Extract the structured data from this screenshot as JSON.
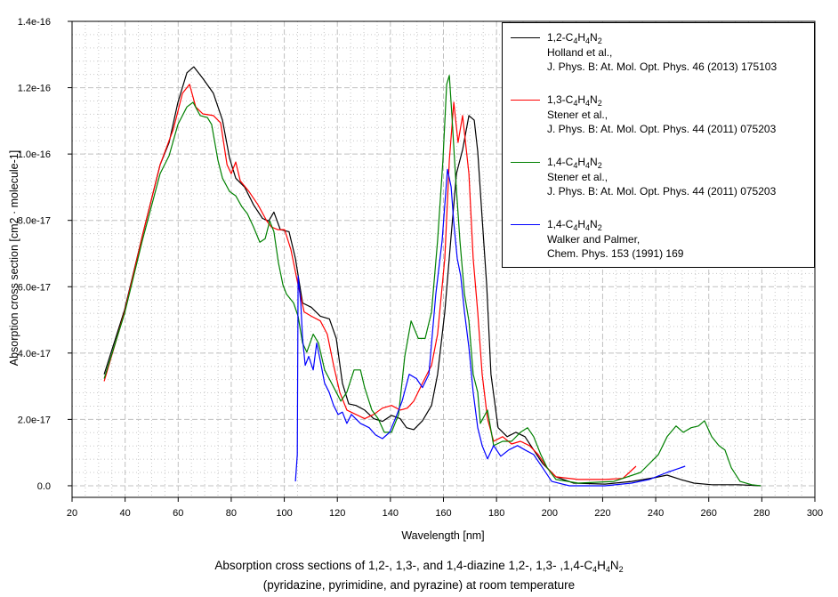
{
  "chart_data": {
    "type": "line",
    "title": "",
    "caption_lines": [
      "Absorption cross sections of 1,2-, 1,3-, and 1,4-diazine 1,2-, 1,3- ,1,4-C4H4N2",
      "(pyridazine, pyrimidine, and pyrazine) at room temperature"
    ],
    "xlabel": "Wavelength [nm]",
    "ylabel": "Absorption cross section [cm2 · molecule-1]",
    "xlim": [
      20,
      300
    ],
    "ylim": [
      -3.5e-18,
      1.4e-16
    ],
    "x_ticks": [
      "20",
      "40",
      "60",
      "80",
      "100",
      "120",
      "140",
      "160",
      "180",
      "200",
      "220",
      "240",
      "260",
      "280",
      "300"
    ],
    "x_tick_values": [
      20,
      40,
      60,
      80,
      100,
      120,
      140,
      160,
      180,
      200,
      220,
      240,
      260,
      280,
      300
    ],
    "y_ticks": [
      "0.0",
      "2.0e-17",
      "4.0e-17",
      "6.0e-17",
      "8.0e-17",
      "1.0e-16",
      "1.2e-16",
      "1.4e-16"
    ],
    "y_tick_values": [
      0,
      2e-17,
      4e-17,
      6e-17,
      8e-17,
      1e-16,
      1.2e-16,
      1.4e-16
    ],
    "grid": true,
    "legend_position": "top-right",
    "series": [
      {
        "name": "1,2-C4H4N2",
        "reference": [
          "Holland et al.,",
          "J. Phys. B: At. Mol. Opt. Phys. 46 (2013) 175103"
        ],
        "color": "#000000",
        "x": [
          32.1,
          39.8,
          46.5,
          53.2,
          56.6,
          59.9,
          63.3,
          65.9,
          69.3,
          73.3,
          76.7,
          79.4,
          81.7,
          85.1,
          88.4,
          91.8,
          94.1,
          96.1,
          98.5,
          101.8,
          104.2,
          106.9,
          110.2,
          113.6,
          117.0,
          119.6,
          121.9,
          124.3,
          127.0,
          130.3,
          133.7,
          137.0,
          140.4,
          143.7,
          146.1,
          148.8,
          152.1,
          155.5,
          157.8,
          160.5,
          162.9,
          164.9,
          167.2,
          169.6,
          171.6,
          172.9,
          174.6,
          176.3,
          177.9,
          180.6,
          184.0,
          187.3,
          190.7,
          194.0,
          197.4,
          202.4,
          209.1,
          220.9,
          230.9,
          239.3,
          244.3,
          249.4,
          254.4,
          261.1,
          271.2,
          279.6
        ],
        "y": [
          3.36e-17,
          5.3e-17,
          7.53e-17,
          9.68e-17,
          1.035e-16,
          1.156e-16,
          1.245e-16,
          1.263e-16,
          1.228e-16,
          1.183e-16,
          1.102e-16,
          9.87e-17,
          9.27e-17,
          9e-17,
          8.47e-17,
          8.06e-17,
          7.98e-17,
          8.25e-17,
          7.72e-17,
          7.66e-17,
          6.85e-17,
          5.51e-17,
          5.38e-17,
          5.11e-17,
          5.03e-17,
          4.44e-17,
          3.09e-17,
          2.47e-17,
          2.42e-17,
          2.28e-17,
          2.02e-17,
          1.94e-17,
          2.12e-17,
          2.02e-17,
          1.75e-17,
          1.69e-17,
          1.96e-17,
          2.42e-17,
          3.36e-17,
          5.24e-17,
          7.53e-17,
          9.41e-17,
          1.013e-16,
          1.116e-16,
          1.102e-16,
          1.008e-16,
          8.06e-17,
          6.05e-17,
          3.36e-17,
          1.75e-17,
          1.48e-17,
          1.61e-17,
          1.48e-17,
          1.08e-17,
          6.7e-18,
          2.7e-18,
          8e-19,
          5e-19,
          1.3e-18,
          2.4e-18,
          3.2e-18,
          1.9e-18,
          8e-19,
          3e-19,
          3e-19,
          0
        ]
      },
      {
        "name": "1,3-C4H4N2",
        "reference": [
          "Stener et al.,",
          "J. Phys. B: At. Mol. Opt. Phys. 44 (2011) 075203"
        ],
        "color": "#ff0000",
        "x": [
          32.1,
          39.8,
          46.5,
          53.2,
          58.2,
          61.6,
          64.3,
          66.6,
          69.3,
          73.3,
          76.0,
          78.4,
          80.0,
          81.7,
          83.4,
          86.7,
          90.1,
          93.4,
          95.1,
          97.5,
          100.1,
          102.5,
          105.2,
          107.5,
          110.2,
          113.6,
          116.2,
          118.6,
          120.9,
          123.6,
          127.0,
          130.3,
          133.7,
          137.0,
          140.4,
          143.7,
          146.4,
          148.8,
          152.1,
          155.5,
          157.8,
          160.5,
          162.2,
          163.9,
          165.5,
          167.2,
          169.6,
          171.2,
          172.9,
          174.6,
          176.6,
          178.9,
          182.3,
          185.7,
          189.0,
          192.4,
          195.7,
          199.1,
          202.4,
          210.8,
          220.9,
          227.6,
          232.6
        ],
        "y": [
          3.15e-17,
          5.24e-17,
          7.53e-17,
          9.68e-17,
          1.075e-16,
          1.183e-16,
          1.21e-16,
          1.142e-16,
          1.121e-16,
          1.116e-16,
          1.094e-16,
          9.68e-17,
          9.41e-17,
          9.76e-17,
          9.19e-17,
          8.87e-17,
          8.47e-17,
          7.98e-17,
          7.8e-17,
          7.72e-17,
          7.72e-17,
          7.12e-17,
          6.05e-17,
          5.24e-17,
          5.11e-17,
          4.97e-17,
          4.57e-17,
          3.63e-17,
          2.82e-17,
          2.28e-17,
          2.15e-17,
          2.02e-17,
          2.15e-17,
          2.34e-17,
          2.42e-17,
          2.28e-17,
          2.34e-17,
          2.55e-17,
          3.09e-17,
          3.63e-17,
          4.57e-17,
          6.85e-17,
          9.81e-17,
          1.156e-16,
          1.035e-16,
          1.116e-16,
          9.41e-17,
          6.85e-17,
          5.24e-17,
          3.36e-17,
          2.02e-17,
          1.34e-17,
          1.48e-17,
          1.26e-17,
          1.34e-17,
          1.21e-17,
          9.4e-18,
          5.4e-18,
          2.7e-18,
          1.9e-18,
          1.9e-18,
          2.2e-18,
          5.9e-18
        ]
      },
      {
        "name": "1,4-C4H4N2",
        "reference": [
          "Stener et al.,",
          "J. Phys. B: At. Mol. Opt. Phys. 44 (2011) 075203"
        ],
        "color": "#008000",
        "x": [
          32.1,
          39.8,
          46.5,
          53.2,
          56.6,
          59.9,
          63.3,
          65.6,
          68.3,
          71.0,
          72.6,
          75.0,
          76.7,
          79.4,
          81.7,
          84.0,
          86.1,
          88.4,
          90.8,
          92.8,
          94.5,
          96.1,
          97.8,
          99.5,
          100.8,
          103.5,
          105.2,
          106.9,
          108.5,
          110.9,
          112.9,
          115.2,
          116.9,
          119.6,
          121.3,
          123.6,
          126.3,
          128.7,
          130.3,
          133.0,
          135.4,
          137.7,
          140.4,
          143.1,
          145.4,
          147.8,
          150.5,
          153.1,
          155.5,
          157.8,
          159.8,
          161.2,
          162.2,
          163.2,
          164.6,
          166.2,
          167.9,
          169.6,
          171.2,
          172.9,
          173.9,
          176.6,
          178.9,
          182.3,
          185.7,
          189.0,
          191.7,
          194.0,
          196.7,
          199.1,
          202.4,
          210.8,
          224.2,
          234.3,
          241.0,
          244.3,
          247.7,
          250.4,
          253.4,
          256.1,
          258.4,
          261.1,
          263.8,
          266.1,
          268.5,
          271.8,
          276.2,
          279.6
        ],
        "y": [
          3.23e-17,
          5.19e-17,
          7.39e-17,
          9.41e-17,
          9.95e-17,
          1.089e-16,
          1.142e-16,
          1.156e-16,
          1.116e-16,
          1.11e-16,
          1.089e-16,
          9.81e-17,
          9.27e-17,
          8.87e-17,
          8.74e-17,
          8.41e-17,
          8.2e-17,
          7.8e-17,
          7.34e-17,
          7.45e-17,
          7.98e-17,
          7.66e-17,
          6.72e-17,
          6.05e-17,
          5.78e-17,
          5.51e-17,
          5.11e-17,
          4.3e-17,
          4.03e-17,
          4.57e-17,
          4.3e-17,
          3.49e-17,
          3.23e-17,
          2.82e-17,
          2.55e-17,
          2.82e-17,
          3.49e-17,
          3.49e-17,
          2.96e-17,
          2.28e-17,
          2.02e-17,
          1.61e-17,
          1.61e-17,
          2.15e-17,
          3.9e-17,
          4.97e-17,
          4.44e-17,
          4.44e-17,
          5.24e-17,
          7.39e-17,
          9.81e-17,
          1.21e-16,
          1.237e-16,
          1.116e-16,
          9.27e-17,
          7.39e-17,
          5.78e-17,
          4.97e-17,
          3.36e-17,
          2.82e-17,
          1.88e-17,
          2.28e-17,
          1.21e-17,
          1.34e-17,
          1.34e-17,
          1.61e-17,
          1.75e-17,
          1.48e-17,
          9.4e-18,
          5.4e-18,
          1.9e-18,
          8e-19,
          1.3e-18,
          4e-18,
          9.4e-18,
          1.48e-17,
          1.8e-17,
          1.61e-17,
          1.75e-17,
          1.8e-17,
          1.96e-17,
          1.48e-17,
          1.21e-17,
          1.08e-17,
          5.4e-18,
          1.3e-18,
          3e-19,
          0
        ]
      },
      {
        "name": "1,4-C4H4N2",
        "reference": [
          "Walker and Palmer,",
          "Chem. Phys. 153 (1991) 169"
        ],
        "color": "#0000ff",
        "x": [
          104.2,
          104.9,
          105.2,
          106.2,
          106.9,
          107.9,
          109.2,
          110.9,
          112.2,
          113.6,
          115.2,
          116.9,
          118.6,
          120.3,
          121.9,
          123.6,
          125.3,
          128.7,
          132.0,
          134.4,
          137.0,
          139.7,
          142.1,
          144.4,
          147.1,
          149.8,
          152.1,
          154.5,
          157.1,
          159.5,
          161.5,
          162.9,
          163.9,
          165.2,
          166.5,
          167.9,
          169.6,
          171.2,
          172.9,
          174.6,
          176.6,
          178.9,
          181.6,
          184.6,
          187.9,
          190.7,
          194.0,
          197.4,
          200.8,
          207.5,
          220.9,
          230.9,
          237.6,
          244.3,
          251.1
        ],
        "y": [
          1.3e-18,
          9.4e-18,
          6.32e-17,
          5.51e-17,
          4.44e-17,
          3.63e-17,
          3.9e-17,
          3.49e-17,
          4.3e-17,
          3.76e-17,
          3.09e-17,
          2.82e-17,
          2.42e-17,
          2.15e-17,
          2.22e-17,
          1.88e-17,
          2.15e-17,
          1.88e-17,
          1.75e-17,
          1.53e-17,
          1.42e-17,
          1.61e-17,
          2.07e-17,
          2.55e-17,
          3.36e-17,
          3.23e-17,
          2.96e-17,
          3.36e-17,
          5.78e-17,
          7.39e-17,
          9.54e-17,
          9.01e-17,
          7.93e-17,
          6.85e-17,
          6.32e-17,
          5.24e-17,
          4.17e-17,
          2.82e-17,
          1.75e-17,
          1.21e-17,
          8.1e-18,
          1.21e-17,
          8.9e-18,
          1.08e-17,
          1.21e-17,
          1.08e-17,
          9.4e-18,
          5.4e-18,
          1.3e-18,
          0,
          0,
          8e-19,
          1.9e-18,
          4e-18,
          5.9e-18
        ]
      }
    ]
  }
}
